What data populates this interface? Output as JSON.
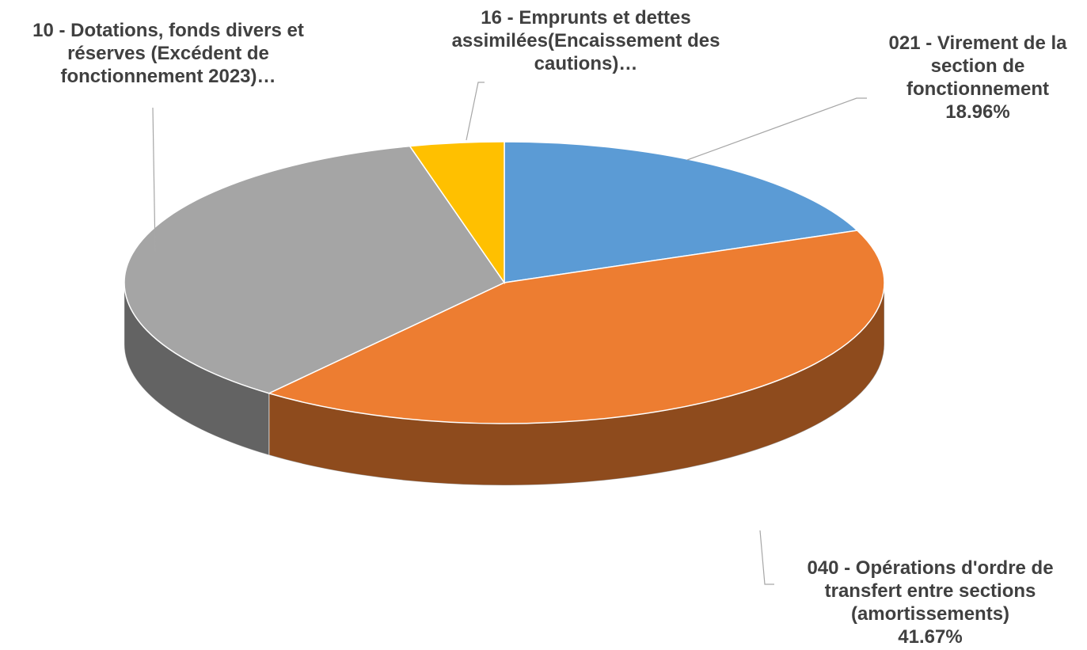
{
  "chart_data": {
    "type": "pie3d",
    "categories": [
      "021 - Virement de la section de fonctionnement",
      "040 - Opérations d'ordre de transfert entre sections (amortissements)",
      "10 - Dotations, fonds divers et réserves (Excédent de fonctionnement 2023)…",
      "16 - Emprunts et dettes assimilées(Encaissement des cautions)…"
    ],
    "values": [
      18.96,
      41.67,
      35.37,
      4
    ],
    "value_labels": [
      "18.96%",
      "41.67%",
      null,
      null
    ],
    "colors": [
      "#5b9bd5",
      "#ed7d31",
      "#a5a5a5",
      "#ffc000"
    ]
  }
}
